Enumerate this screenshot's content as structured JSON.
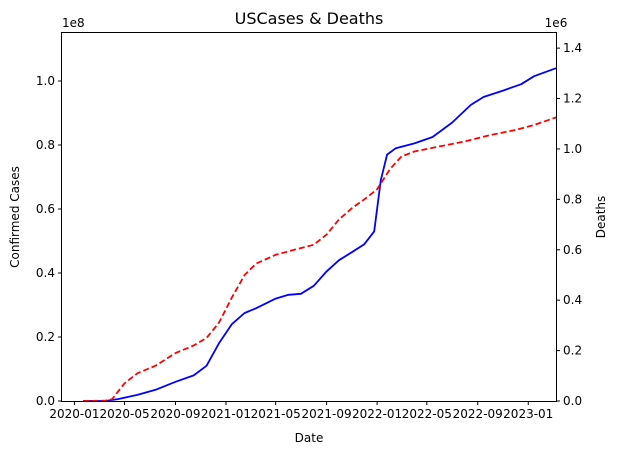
{
  "chart_data": {
    "type": "line",
    "title": "USCases & Deaths",
    "xlabel": "Date",
    "ylabel_left": "Confirmed Cases",
    "ylabel_right": "Deaths",
    "left_offset_label": "1e8",
    "right_offset_label": "1e6",
    "xlim": [
      "2019-12-02",
      "2023-03-09"
    ],
    "ylim_left": [
      0,
      1.15
    ],
    "ylim_right": [
      0,
      1.46
    ],
    "x_ticks": [
      {
        "date": "2020-01-01",
        "label": "2020-01"
      },
      {
        "date": "2020-05-01",
        "label": "2020-05"
      },
      {
        "date": "2020-09-01",
        "label": "2020-09"
      },
      {
        "date": "2021-01-01",
        "label": "2021-01"
      },
      {
        "date": "2021-05-01",
        "label": "2021-05"
      },
      {
        "date": "2021-09-01",
        "label": "2021-09"
      },
      {
        "date": "2022-01-01",
        "label": "2022-01"
      },
      {
        "date": "2022-05-01",
        "label": "2022-05"
      },
      {
        "date": "2022-09-01",
        "label": "2022-09"
      },
      {
        "date": "2023-01-01",
        "label": "2023-01"
      }
    ],
    "left_ticks": [
      {
        "value": 0,
        "label": "0.0"
      },
      {
        "value": 0.2,
        "label": "0.2"
      },
      {
        "value": 0.4,
        "label": "0.4"
      },
      {
        "value": 0.6,
        "label": "0.6"
      },
      {
        "value": 0.8,
        "label": "0.8"
      },
      {
        "value": 1.0,
        "label": "1.0"
      }
    ],
    "right_ticks": [
      {
        "value": 0,
        "label": "0.0"
      },
      {
        "value": 0.2,
        "label": "0.2"
      },
      {
        "value": 0.4,
        "label": "0.4"
      },
      {
        "value": 0.6,
        "label": "0.6"
      },
      {
        "value": 0.8,
        "label": "0.8"
      },
      {
        "value": 1.0,
        "label": "1.0"
      },
      {
        "value": 1.2,
        "label": "1.2"
      },
      {
        "value": 1.4,
        "label": "1.4"
      }
    ],
    "grid": false,
    "series": [
      {
        "axis": "left",
        "color": "#0000ff",
        "style": "solid",
        "points": [
          [
            "2020-01-22",
            0.0
          ],
          [
            "2020-03-15",
            0.0
          ],
          [
            "2020-04-15",
            0.006
          ],
          [
            "2020-06-01",
            0.019
          ],
          [
            "2020-07-15",
            0.035
          ],
          [
            "2020-09-01",
            0.06
          ],
          [
            "2020-10-15",
            0.08
          ],
          [
            "2020-11-15",
            0.11
          ],
          [
            "2020-12-15",
            0.18
          ],
          [
            "2021-01-15",
            0.24
          ],
          [
            "2021-02-15",
            0.275
          ],
          [
            "2021-03-15",
            0.29
          ],
          [
            "2021-05-01",
            0.32
          ],
          [
            "2021-06-01",
            0.332
          ],
          [
            "2021-07-01",
            0.335
          ],
          [
            "2021-08-01",
            0.36
          ],
          [
            "2021-09-01",
            0.405
          ],
          [
            "2021-10-01",
            0.44
          ],
          [
            "2021-11-01",
            0.465
          ],
          [
            "2021-12-01",
            0.49
          ],
          [
            "2021-12-25",
            0.53
          ],
          [
            "2022-01-10",
            0.69
          ],
          [
            "2022-01-25",
            0.77
          ],
          [
            "2022-02-15",
            0.79
          ],
          [
            "2022-04-01",
            0.805
          ],
          [
            "2022-05-15",
            0.825
          ],
          [
            "2022-07-01",
            0.87
          ],
          [
            "2022-08-15",
            0.925
          ],
          [
            "2022-09-15",
            0.95
          ],
          [
            "2022-11-01",
            0.97
          ],
          [
            "2022-12-15",
            0.99
          ],
          [
            "2023-01-15",
            1.015
          ],
          [
            "2023-03-09",
            1.04
          ]
        ]
      },
      {
        "axis": "right",
        "color": "#ff0000",
        "style": "dashed",
        "points": [
          [
            "2020-01-22",
            0.0
          ],
          [
            "2020-03-15",
            0.001
          ],
          [
            "2020-04-01",
            0.007
          ],
          [
            "2020-05-01",
            0.07
          ],
          [
            "2020-06-01",
            0.11
          ],
          [
            "2020-07-15",
            0.14
          ],
          [
            "2020-09-01",
            0.19
          ],
          [
            "2020-10-15",
            0.22
          ],
          [
            "2020-11-15",
            0.25
          ],
          [
            "2020-12-15",
            0.31
          ],
          [
            "2021-01-15",
            0.41
          ],
          [
            "2021-02-15",
            0.5
          ],
          [
            "2021-03-15",
            0.545
          ],
          [
            "2021-05-01",
            0.58
          ],
          [
            "2021-06-15",
            0.6
          ],
          [
            "2021-08-01",
            0.62
          ],
          [
            "2021-09-01",
            0.66
          ],
          [
            "2021-10-01",
            0.72
          ],
          [
            "2021-11-01",
            0.765
          ],
          [
            "2021-12-01",
            0.8
          ],
          [
            "2022-01-01",
            0.84
          ],
          [
            "2022-02-01",
            0.92
          ],
          [
            "2022-03-01",
            0.97
          ],
          [
            "2022-04-01",
            0.99
          ],
          [
            "2022-06-01",
            1.01
          ],
          [
            "2022-08-01",
            1.03
          ],
          [
            "2022-10-01",
            1.055
          ],
          [
            "2022-12-01",
            1.075
          ],
          [
            "2023-01-15",
            1.095
          ],
          [
            "2023-03-09",
            1.125
          ]
        ]
      }
    ]
  }
}
